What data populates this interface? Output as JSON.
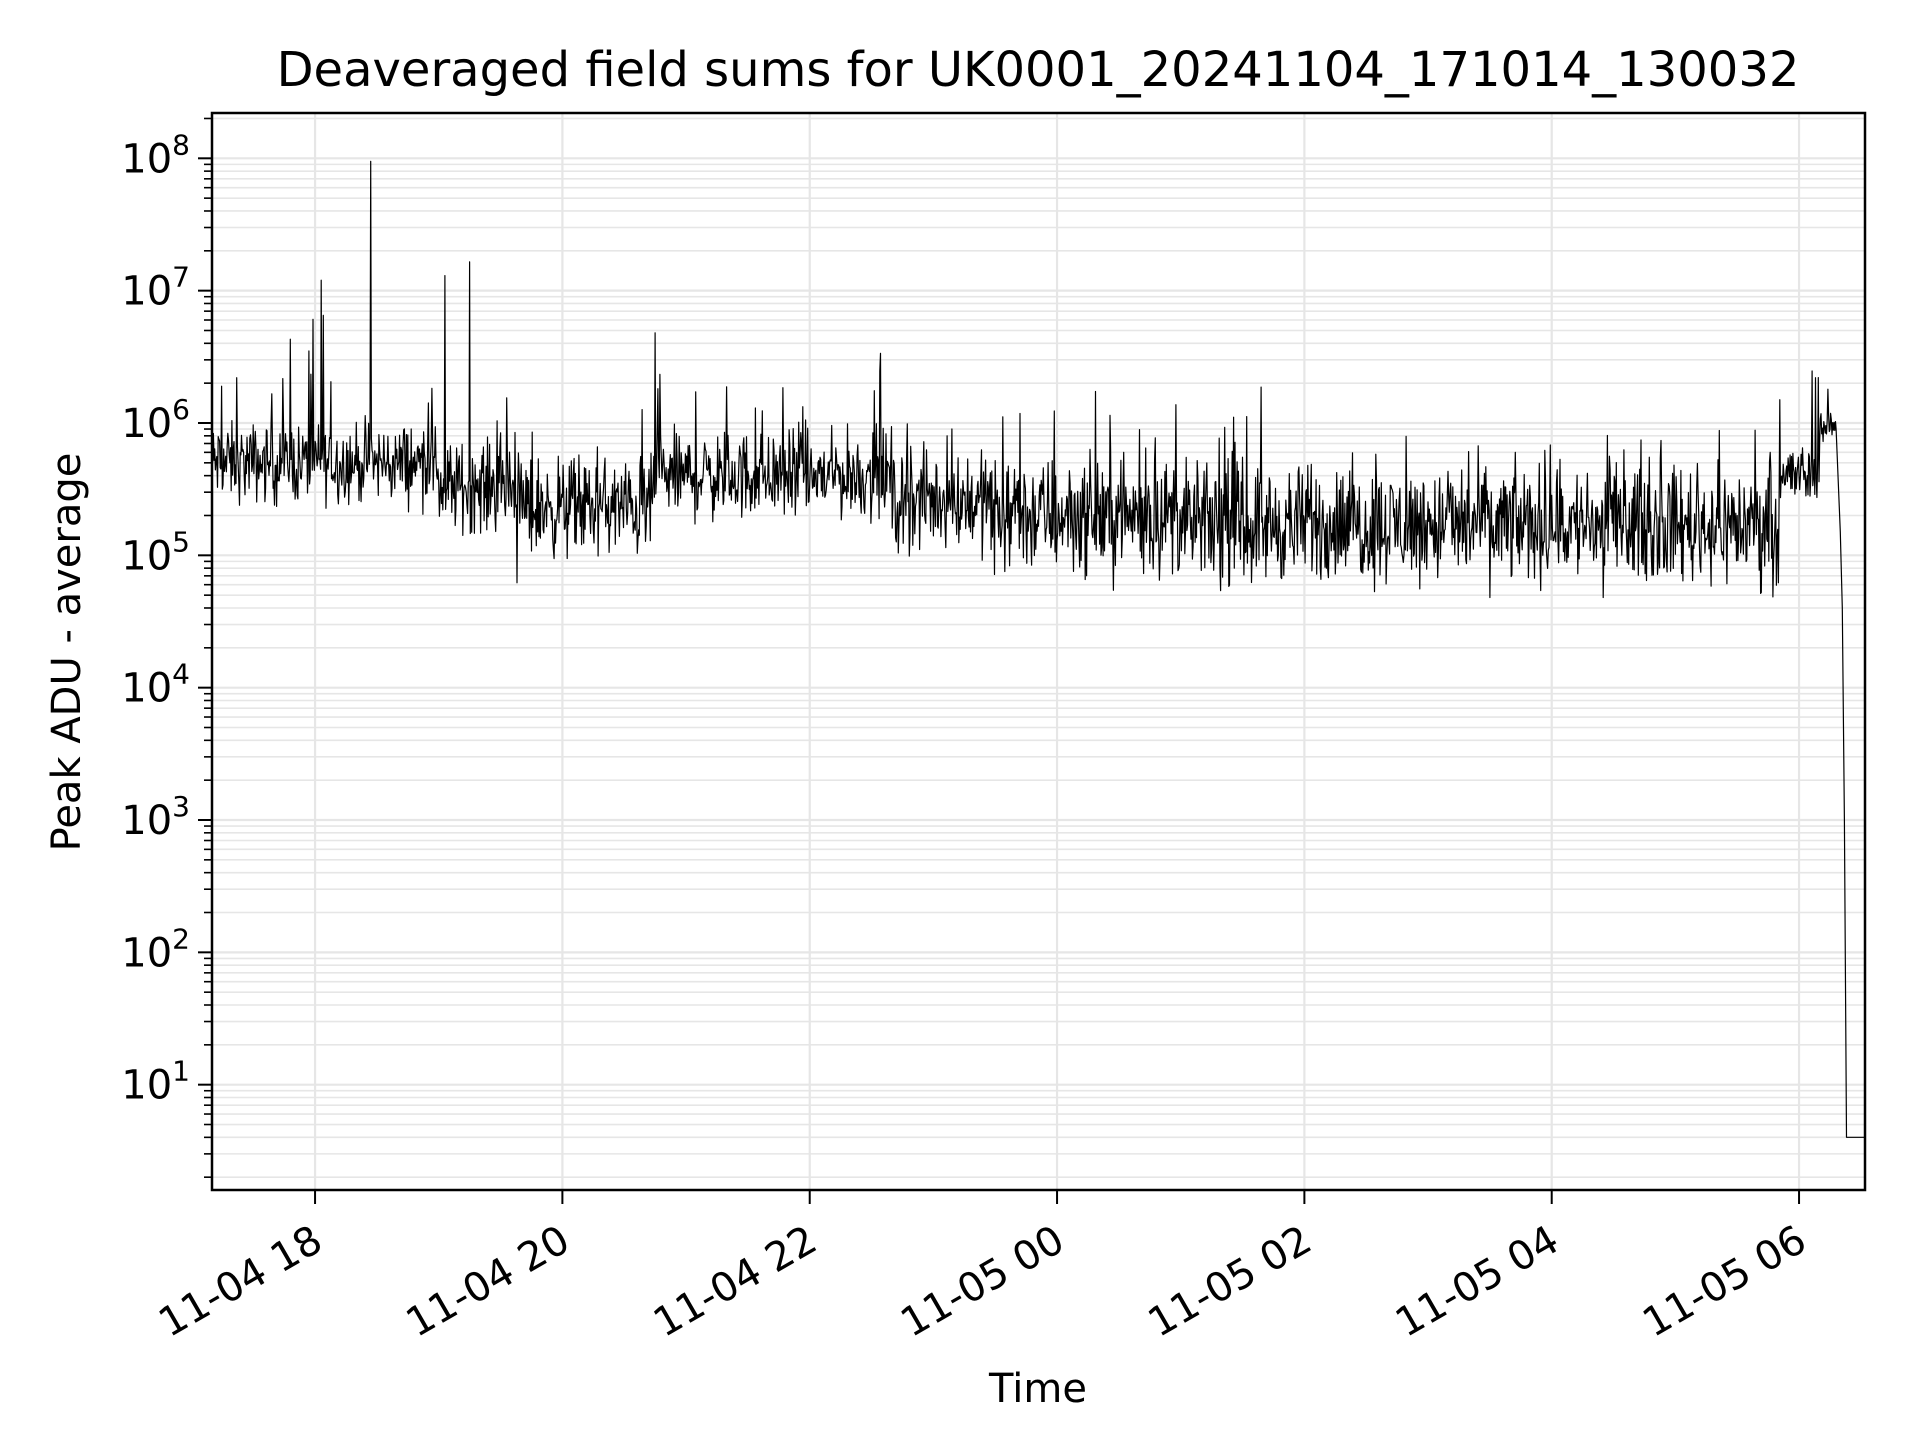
{
  "chart_data": {
    "type": "line",
    "title": "Deaveraged field sums for UK0001_20241104_171014_130032",
    "xlabel": "Time",
    "ylabel": "Peak ADU - average",
    "yscale": "log",
    "xlim": [
      "2024-11-04 17:10",
      "2024-11-05 06:32"
    ],
    "ylim": [
      1.6,
      220000000
    ],
    "x_ticks": [
      {
        "label": "11-04 18",
        "time": "2024-11-04 18:00"
      },
      {
        "label": "11-04 20",
        "time": "2024-11-04 20:00"
      },
      {
        "label": "11-04 22",
        "time": "2024-11-04 22:00"
      },
      {
        "label": "11-05 00",
        "time": "2024-11-05 00:00"
      },
      {
        "label": "11-05 02",
        "time": "2024-11-05 02:00"
      },
      {
        "label": "11-05 04",
        "time": "2024-11-05 04:00"
      },
      {
        "label": "11-05 06",
        "time": "2024-11-05 06:00"
      }
    ],
    "y_ticks": [
      {
        "base": "10",
        "exp": "1",
        "value": 10
      },
      {
        "base": "10",
        "exp": "2",
        "value": 100
      },
      {
        "base": "10",
        "exp": "3",
        "value": 1000
      },
      {
        "base": "10",
        "exp": "4",
        "value": 10000
      },
      {
        "base": "10",
        "exp": "5",
        "value": 100000
      },
      {
        "base": "10",
        "exp": "6",
        "value": 1000000
      },
      {
        "base": "10",
        "exp": "7",
        "value": 10000000
      },
      {
        "base": "10",
        "exp": "8",
        "value": 100000000
      }
    ],
    "grid": true,
    "line_color": "#000000",
    "grid_color": "#e6e6e6",
    "baseline_segments": [
      {
        "start": "2024-11-04 17:10",
        "end": "2024-11-04 19:00",
        "level": 500000,
        "spread": 1.6
      },
      {
        "start": "2024-11-04 19:00",
        "end": "2024-11-04 19:40",
        "level": 330000,
        "spread": 1.7
      },
      {
        "start": "2024-11-04 19:40",
        "end": "2024-11-04 20:44",
        "level": 230000,
        "spread": 1.8
      },
      {
        "start": "2024-11-04 20:44",
        "end": "2024-11-04 22:40",
        "level": 400000,
        "spread": 1.7
      },
      {
        "start": "2024-11-04 22:40",
        "end": "2024-11-04 23:28",
        "level": 260000,
        "spread": 1.8
      },
      {
        "start": "2024-11-04 23:28",
        "end": "2024-11-05 01:00",
        "level": 200000,
        "spread": 2.0
      },
      {
        "start": "2024-11-05 01:00",
        "end": "2024-11-05 05:50",
        "level": 170000,
        "spread": 2.0
      },
      {
        "start": "2024-11-05 05:50",
        "end": "2024-11-05 06:10",
        "level": 400000,
        "spread": 1.5
      },
      {
        "start": "2024-11-05 06:10",
        "end": "2024-11-05 06:18",
        "level": 950000,
        "spread": 1.2
      }
    ],
    "peaks": [
      {
        "time": "2024-11-04 17:22",
        "value": 2200000
      },
      {
        "time": "2024-11-04 17:48",
        "value": 4300000
      },
      {
        "time": "2024-11-04 17:57",
        "value": 3500000
      },
      {
        "time": "2024-11-04 18:03",
        "value": 12000000
      },
      {
        "time": "2024-11-04 18:04",
        "value": 6500000
      },
      {
        "time": "2024-11-04 18:27",
        "value": 95000000
      },
      {
        "time": "2024-11-04 19:03",
        "value": 13000000
      },
      {
        "time": "2024-11-04 19:15",
        "value": 16500000
      },
      {
        "time": "2024-11-04 19:38",
        "value": 1400000
      },
      {
        "time": "2024-11-04 20:45",
        "value": 4800000
      },
      {
        "time": "2024-11-05 06:08",
        "value": 2200000
      },
      {
        "time": "2024-11-05 06:14",
        "value": 1800000
      }
    ],
    "dips": [
      {
        "time": "2024-11-04 19:38",
        "value": 62000
      },
      {
        "time": "2024-11-05 03:30",
        "value": 48000
      },
      {
        "time": "2024-11-05 04:25",
        "value": 48000
      },
      {
        "time": "2024-11-05 05:50",
        "value": 62000
      }
    ],
    "tail": [
      {
        "time": "2024-11-05 06:18",
        "value": 900000
      },
      {
        "time": "2024-11-05 06:20",
        "value": 150000
      },
      {
        "time": "2024-11-05 06:21",
        "value": 40000
      },
      {
        "time": "2024-11-05 06:22",
        "value": 1000
      },
      {
        "time": "2024-11-05 06:23",
        "value": 4
      },
      {
        "time": "2024-11-05 06:32",
        "value": 4
      }
    ]
  }
}
